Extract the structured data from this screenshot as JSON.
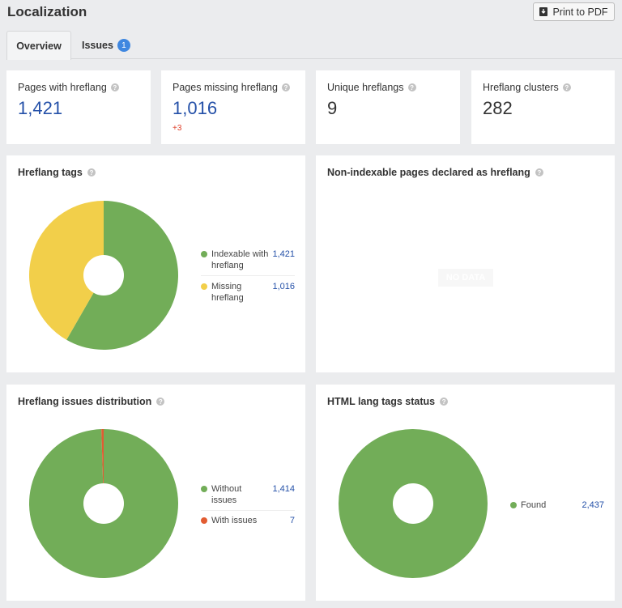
{
  "header": {
    "title": "Localization",
    "print_label": "Print to PDF"
  },
  "tabs": [
    {
      "label": "Overview",
      "active": true
    },
    {
      "label": "Issues",
      "badge": "1"
    }
  ],
  "kpis": [
    {
      "label": "Pages with hreflang",
      "value": "1,421"
    },
    {
      "label": "Pages missing hreflang",
      "value": "1,016",
      "delta": "+3"
    },
    {
      "label": "Unique hreflangs",
      "value": "9"
    },
    {
      "label": "Hreflang clusters",
      "value": "282"
    }
  ],
  "charts": [
    {
      "title": "Hreflang tags",
      "legend": [
        {
          "label": "Indexable with hreflang",
          "value": "1,421",
          "color": "#72ad58"
        },
        {
          "label": "Missing hreflang",
          "value": "1,016",
          "color": "#f2cf4a"
        }
      ]
    },
    {
      "title": "Non-indexable pages declared as hreflang",
      "empty": "NO DATA"
    },
    {
      "title": "Hreflang issues distribution",
      "legend": [
        {
          "label": "Without issues",
          "value": "1,414",
          "color": "#72ad58"
        },
        {
          "label": "With issues",
          "value": "7",
          "color": "#e25c32"
        }
      ]
    },
    {
      "title": "HTML lang tags status",
      "legend": [
        {
          "label": "Found",
          "value": "2,437",
          "color": "#72ad58"
        }
      ]
    }
  ],
  "chart_data": [
    {
      "type": "pie",
      "title": "Hreflang tags",
      "categories": [
        "Indexable with hreflang",
        "Missing hreflang"
      ],
      "values": [
        1421,
        1016
      ],
      "colors": [
        "#72ad58",
        "#f2cf4a"
      ]
    },
    {
      "type": "pie",
      "title": "Hreflang issues distribution",
      "categories": [
        "Without issues",
        "With issues"
      ],
      "values": [
        1414,
        7
      ],
      "colors": [
        "#72ad58",
        "#e25c32"
      ]
    },
    {
      "type": "pie",
      "title": "HTML lang tags status",
      "categories": [
        "Found"
      ],
      "values": [
        2437
      ],
      "colors": [
        "#72ad58"
      ]
    }
  ]
}
